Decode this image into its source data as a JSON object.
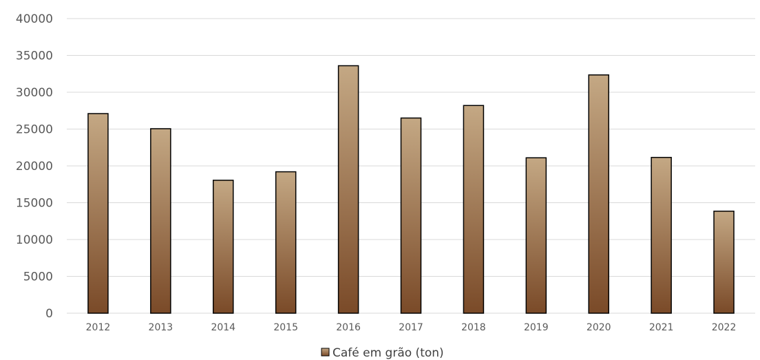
{
  "chart_data": {
    "type": "bar",
    "categories": [
      "2012",
      "2013",
      "2014",
      "2015",
      "2016",
      "2017",
      "2018",
      "2019",
      "2020",
      "2021",
      "2022"
    ],
    "series": [
      {
        "name": "Café em grão (ton)",
        "values": [
          27100,
          25050,
          18050,
          19200,
          33600,
          26500,
          28200,
          21100,
          32350,
          21150,
          13850
        ]
      }
    ],
    "ylim": [
      0,
      40000
    ],
    "yticks": [
      "0",
      "5000",
      "10000",
      "15000",
      "20000",
      "25000",
      "30000",
      "35000",
      "40000"
    ],
    "ytick_values": [
      0,
      5000,
      10000,
      15000,
      20000,
      25000,
      30000,
      35000,
      40000
    ],
    "grid": true,
    "legend_position": "bottom",
    "colors": {
      "bar_top": "#C4A884",
      "bar_bottom": "#7A4A28",
      "bar_edge": "#000000",
      "grid": "#D9D9D9",
      "text": "#595959"
    }
  }
}
